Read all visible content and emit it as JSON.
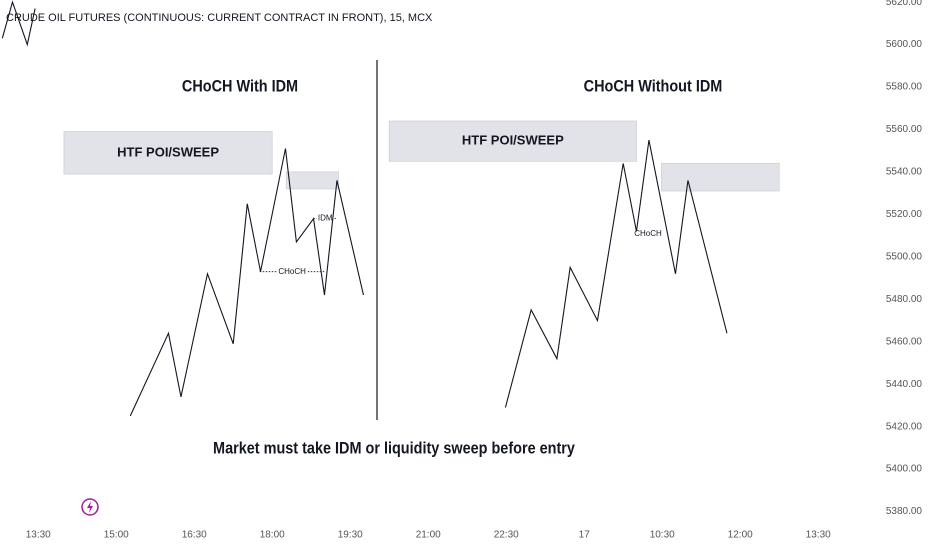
{
  "chart_data": {
    "type": "line",
    "title": "CRUDE OIL FUTURES (CONTINUOUS: CURRENT CONTRACT IN FRONT), 15, MCX",
    "ylim": [
      5376,
      5621
    ],
    "yticks": [
      {
        "value": 5620,
        "label": "5620.00"
      },
      {
        "value": 5600,
        "label": "5600.00"
      },
      {
        "value": 5580,
        "label": "5580.00"
      },
      {
        "value": 5560,
        "label": "5560.00"
      },
      {
        "value": 5540,
        "label": "5540.00"
      },
      {
        "value": 5520,
        "label": "5520.00"
      },
      {
        "value": 5500,
        "label": "5500.00"
      },
      {
        "value": 5480,
        "label": "5480.00"
      },
      {
        "value": 5460,
        "label": "5460.00"
      },
      {
        "value": 5440,
        "label": "5440.00"
      },
      {
        "value": 5420,
        "label": "5420.00"
      },
      {
        "value": 5400,
        "label": "5400.00"
      },
      {
        "value": 5380,
        "label": "5380.00"
      }
    ],
    "xlim": [
      -0.49,
      10.6
    ],
    "xticks": [
      {
        "value": 0,
        "label": "13:30"
      },
      {
        "value": 1,
        "label": "15:00"
      },
      {
        "value": 2,
        "label": "16:30"
      },
      {
        "value": 3,
        "label": "18:00"
      },
      {
        "value": 4,
        "label": "19:30"
      },
      {
        "value": 5,
        "label": "21:00"
      },
      {
        "value": 6,
        "label": "22:30"
      },
      {
        "value": 7,
        "label": "17"
      },
      {
        "value": 8,
        "label": "10:30"
      },
      {
        "value": 9,
        "label": "12:00"
      },
      {
        "value": 10,
        "label": "13:30"
      }
    ],
    "series": [
      {
        "color": "#131722",
        "x": [
          -0.46,
          -0.33,
          -0.14,
          -0.04
        ],
        "values": [
          5603,
          5620,
          5600,
          5617
        ]
      },
      {
        "color": "#131722",
        "x": [
          1.18,
          1.67,
          1.83,
          2.17,
          2.5,
          2.68,
          2.85,
          3.17,
          3.31,
          3.53,
          3.67,
          3.83,
          4.17
        ],
        "values": [
          5425,
          5464,
          5434,
          5492,
          5459,
          5525,
          5493,
          5551,
          5507,
          5518,
          5482,
          5536,
          5482
        ]
      },
      {
        "color": "#131722",
        "x": [
          5.99,
          6.32,
          6.65,
          6.82,
          7.17,
          7.5,
          7.67,
          7.83,
          8.17,
          8.33,
          8.83
        ],
        "values": [
          5429,
          5475,
          5452,
          5495,
          5470,
          5544,
          5512,
          5555,
          5492,
          5536,
          5464
        ]
      }
    ],
    "zones": [
      {
        "name": "HTF POI/SWEEP",
        "x": [
          0.33,
          3.0
        ],
        "y": [
          5539,
          5559
        ]
      },
      {
        "x": [
          3.18,
          3.85
        ],
        "y": [
          5532,
          5540
        ]
      },
      {
        "name": "HTF POI/SWEEP",
        "x": [
          4.5,
          7.67
        ],
        "y": [
          5545,
          5564
        ]
      },
      {
        "x": [
          7.99,
          9.5
        ],
        "y": [
          5531,
          5544
        ]
      }
    ],
    "levels": [
      {
        "name": "IDM",
        "value": 5518,
        "x": [
          3.53,
          3.83
        ]
      },
      {
        "name": "CHoCH",
        "value": 5493,
        "x": [
          2.84,
          3.67
        ]
      }
    ],
    "annotations": [
      "CHoCH With IDM",
      "CHoCH Without IDM",
      "CHoCH",
      "Market must take IDM or liquidity sweep before entry"
    ]
  }
}
